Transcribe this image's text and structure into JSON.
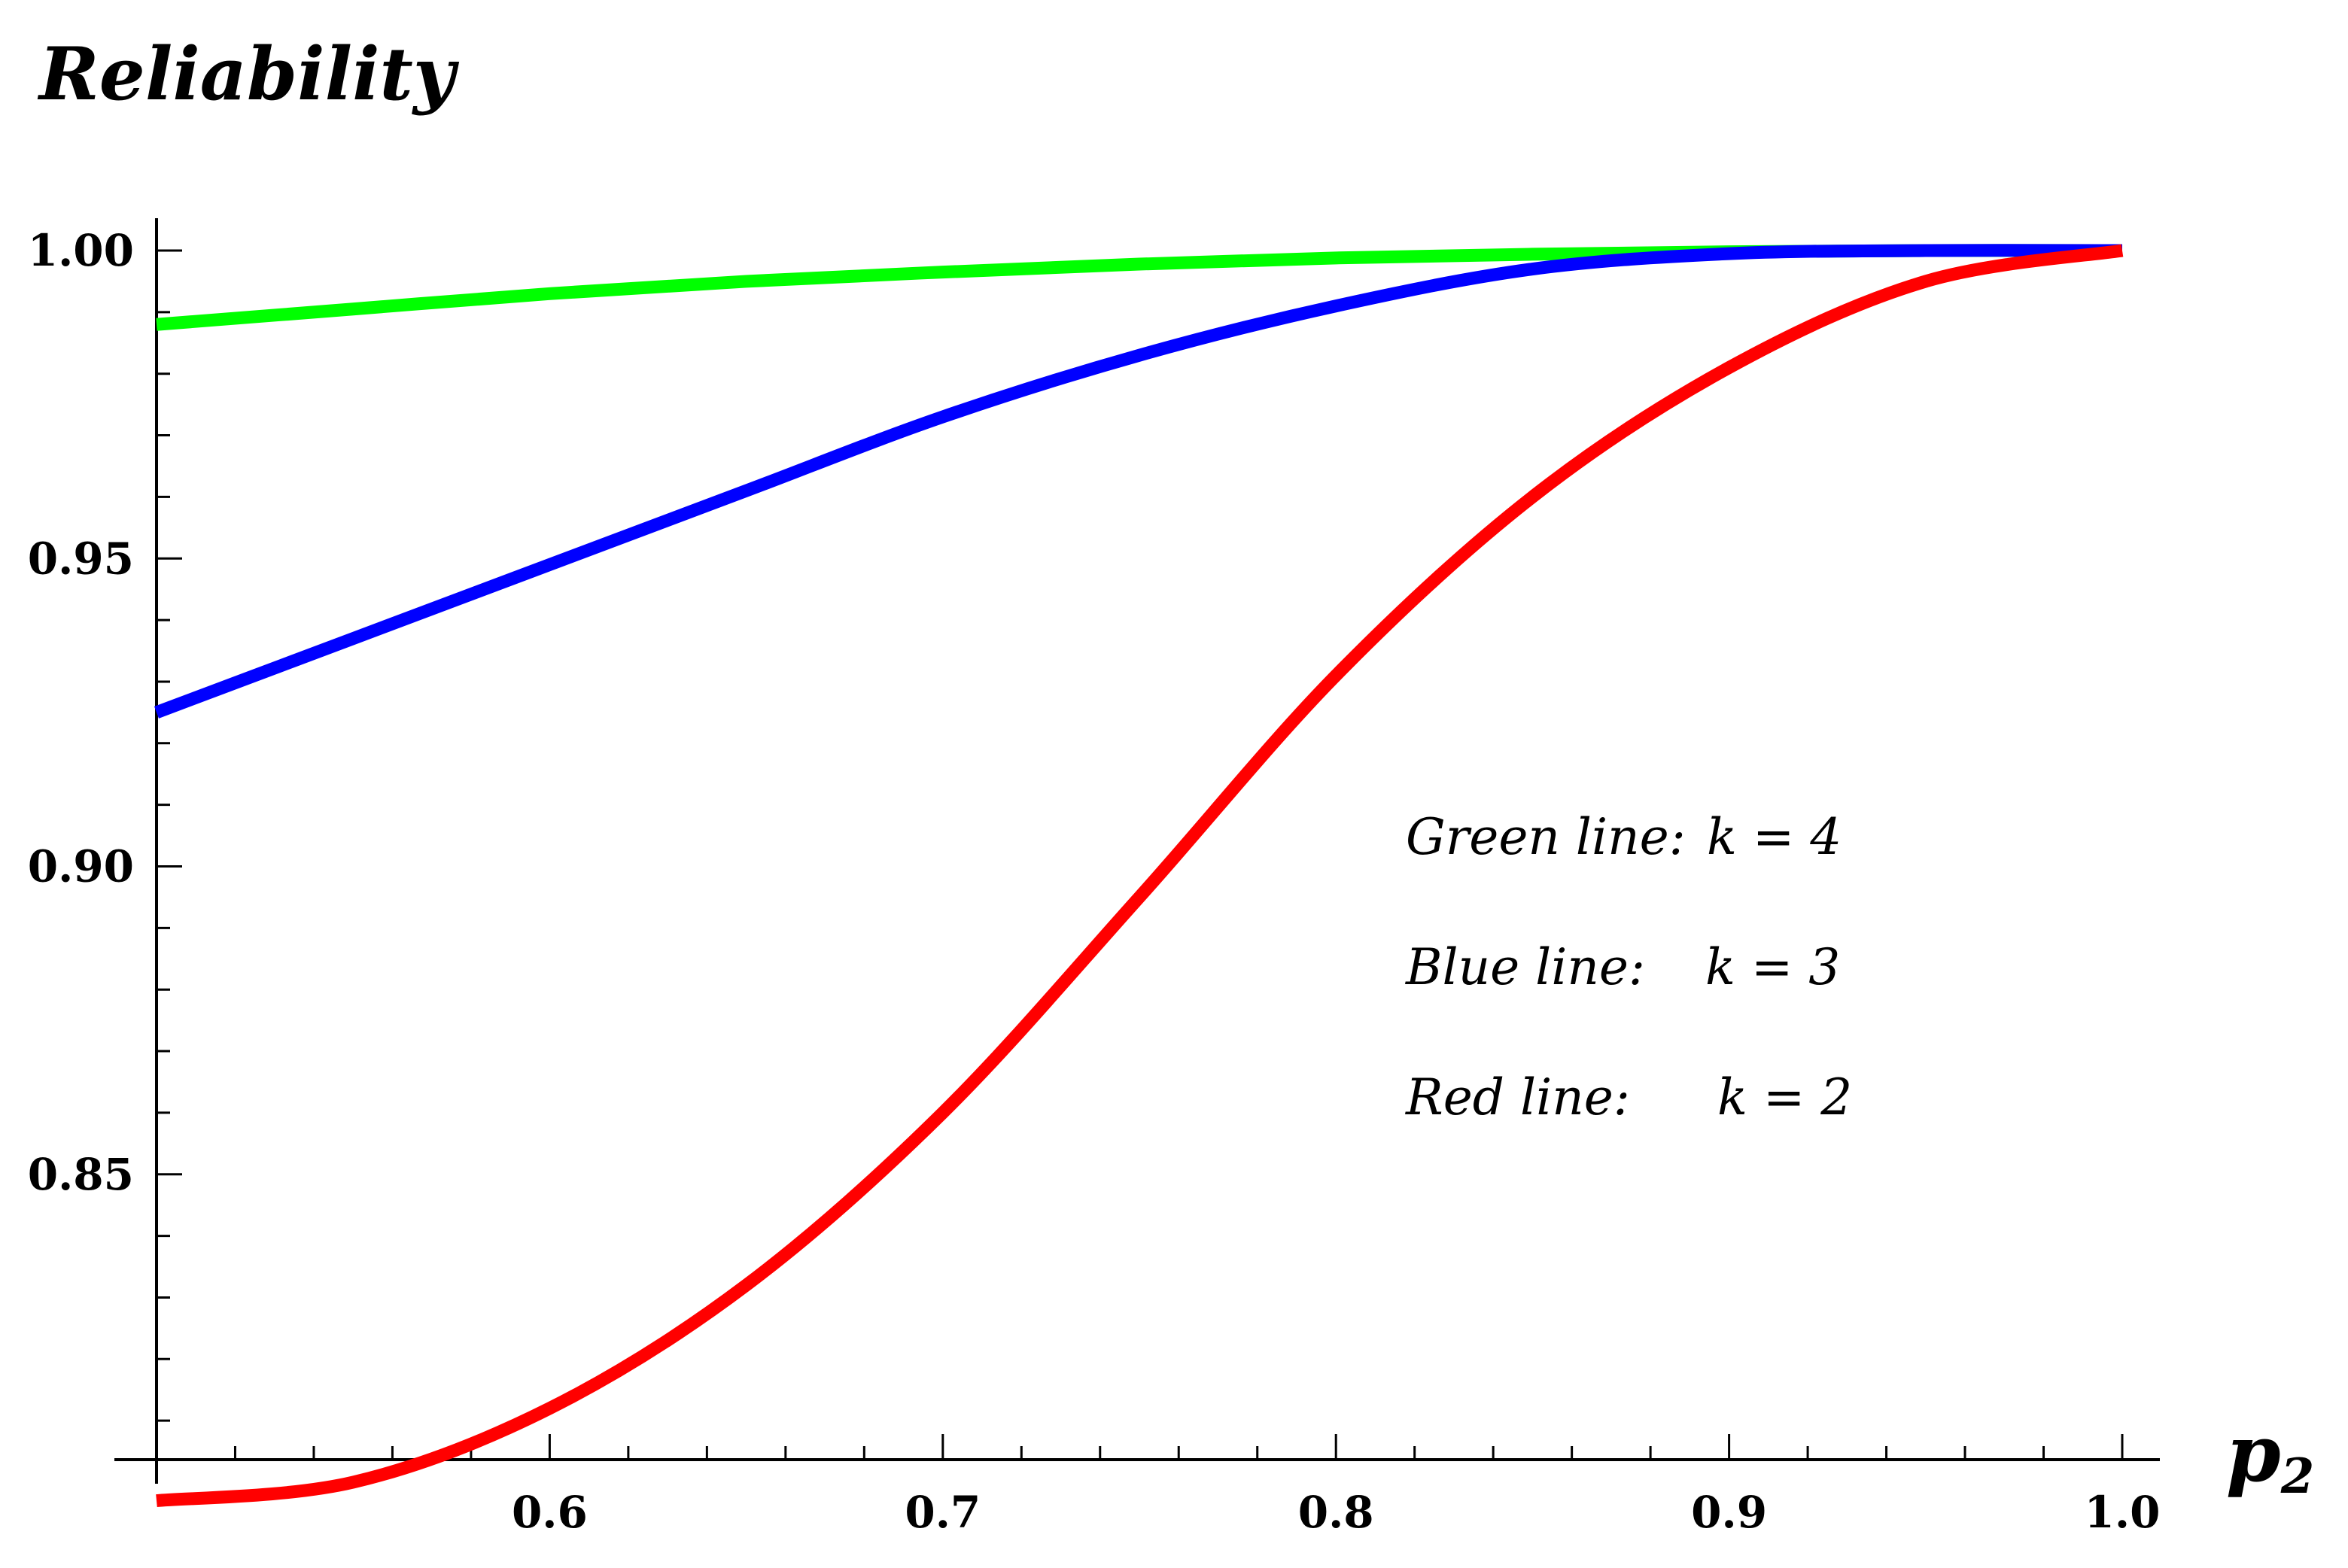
{
  "chart_data": {
    "type": "line",
    "title": "",
    "ylabel": "Reliability",
    "xlabel": "p",
    "xlabel_subscript": "2",
    "xlim": [
      0.5,
      1.0
    ],
    "ylim": [
      0.8,
      1.0
    ],
    "xticks": [
      0.6,
      0.7,
      0.8,
      0.9,
      1.0
    ],
    "xtick_labels": [
      "0.6",
      "0.7",
      "0.8",
      "0.9",
      "1.0"
    ],
    "yticks": [
      0.85,
      0.9,
      0.95,
      1.0
    ],
    "ytick_labels": [
      "0.85",
      "0.90",
      "0.95",
      "1.00"
    ],
    "grid": false,
    "x": [
      0.5,
      0.55,
      0.6,
      0.65,
      0.7,
      0.75,
      0.8,
      0.85,
      0.9,
      0.95,
      1.0
    ],
    "series": [
      {
        "name": "Green line: k = 4",
        "color": "#00ff00",
        "values": [
          0.988,
          0.9905,
          0.993,
          0.995,
          0.9965,
          0.9978,
          0.9988,
          0.9994,
          0.9998,
          1.0,
          1.0
        ]
      },
      {
        "name": "Blue line: k = 3",
        "color": "#0000ff",
        "values": [
          0.925,
          0.937,
          0.949,
          0.961,
          0.973,
          0.983,
          0.991,
          0.997,
          0.9995,
          1.0,
          1.0
        ]
      },
      {
        "name": "Red line: k = 2",
        "color": "#ff0000",
        "values": [
          0.797,
          0.8,
          0.812,
          0.832,
          0.86,
          0.895,
          0.931,
          0.96,
          0.981,
          0.995,
          1.0
        ]
      }
    ],
    "legend": [
      {
        "series": "Green line:",
        "value": "k = 4"
      },
      {
        "series": "Blue line:",
        "value": "k = 3"
      },
      {
        "series": "Red line:",
        "value": "k = 2"
      }
    ],
    "legend_position": "middle-right"
  }
}
